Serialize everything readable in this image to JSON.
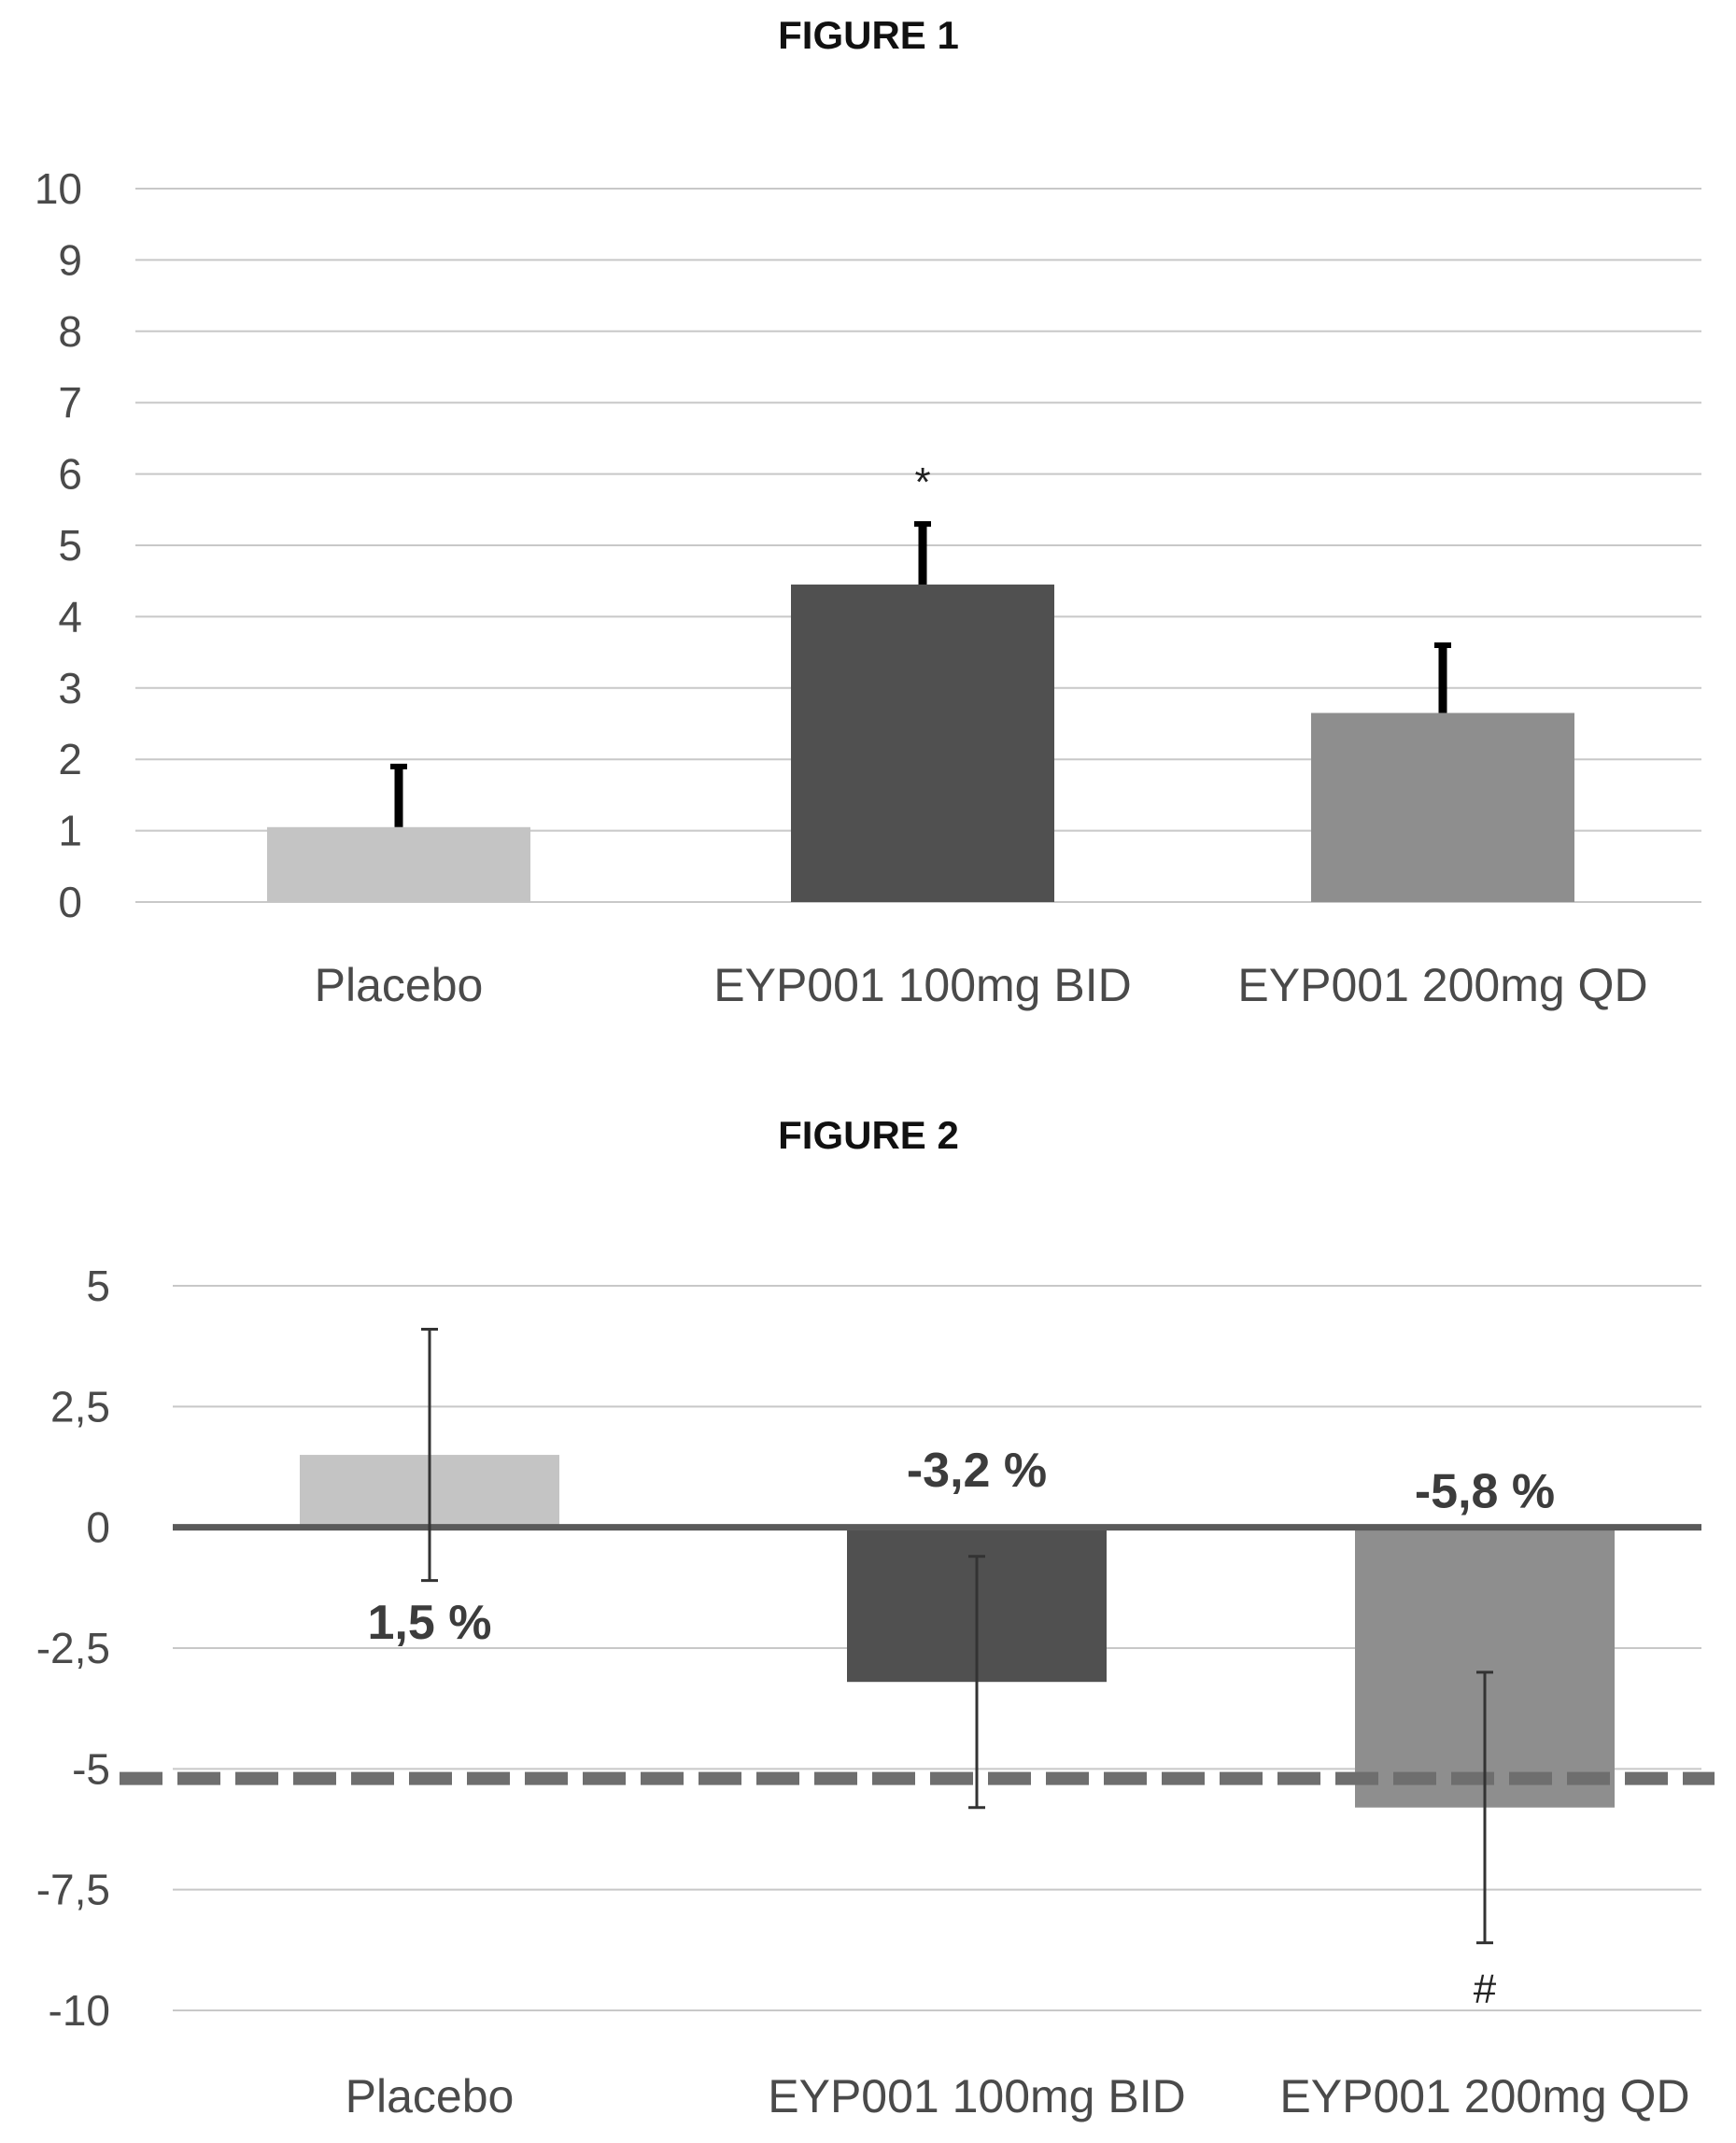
{
  "chart_data": [
    {
      "type": "bar",
      "title": "FIGURE 1",
      "categories": [
        "Placebo",
        "EYP001 100mg BID",
        "EYP001 200mg QD"
      ],
      "values": [
        1.05,
        4.45,
        2.65
      ],
      "error_upper": [
        1.9,
        5.3,
        3.6
      ],
      "ylim": [
        0,
        10
      ],
      "yticks": [
        "0",
        "1",
        "2",
        "3",
        "4",
        "5",
        "6",
        "7",
        "8",
        "9",
        "10"
      ],
      "annotations": [
        {
          "category": 1,
          "text": "*"
        }
      ],
      "colors": [
        "#c4c4c4",
        "#505050",
        "#8e8e8e"
      ],
      "grid": true
    },
    {
      "type": "bar",
      "title": "FIGURE 2",
      "categories": [
        "Placebo",
        "EYP001 100mg BID",
        "EYP001 200mg QD"
      ],
      "values": [
        1.5,
        -3.2,
        -5.8
      ],
      "data_labels": [
        "1,5 %",
        "-3,2 %",
        "-5,8 %"
      ],
      "error_low": [
        -1.1,
        -5.8,
        -8.6
      ],
      "error_high": [
        4.1,
        -0.6,
        -3.0
      ],
      "ylim": [
        -10,
        5
      ],
      "yticks": [
        "5",
        "2,5",
        "0",
        "-2,5",
        "-5",
        "-7,5",
        "-10"
      ],
      "reference_line": -5.2,
      "annotations": [
        {
          "category": 2,
          "text": "#"
        }
      ],
      "colors": [
        "#c4c4c4",
        "#505050",
        "#8e8e8e"
      ],
      "grid": true
    }
  ]
}
